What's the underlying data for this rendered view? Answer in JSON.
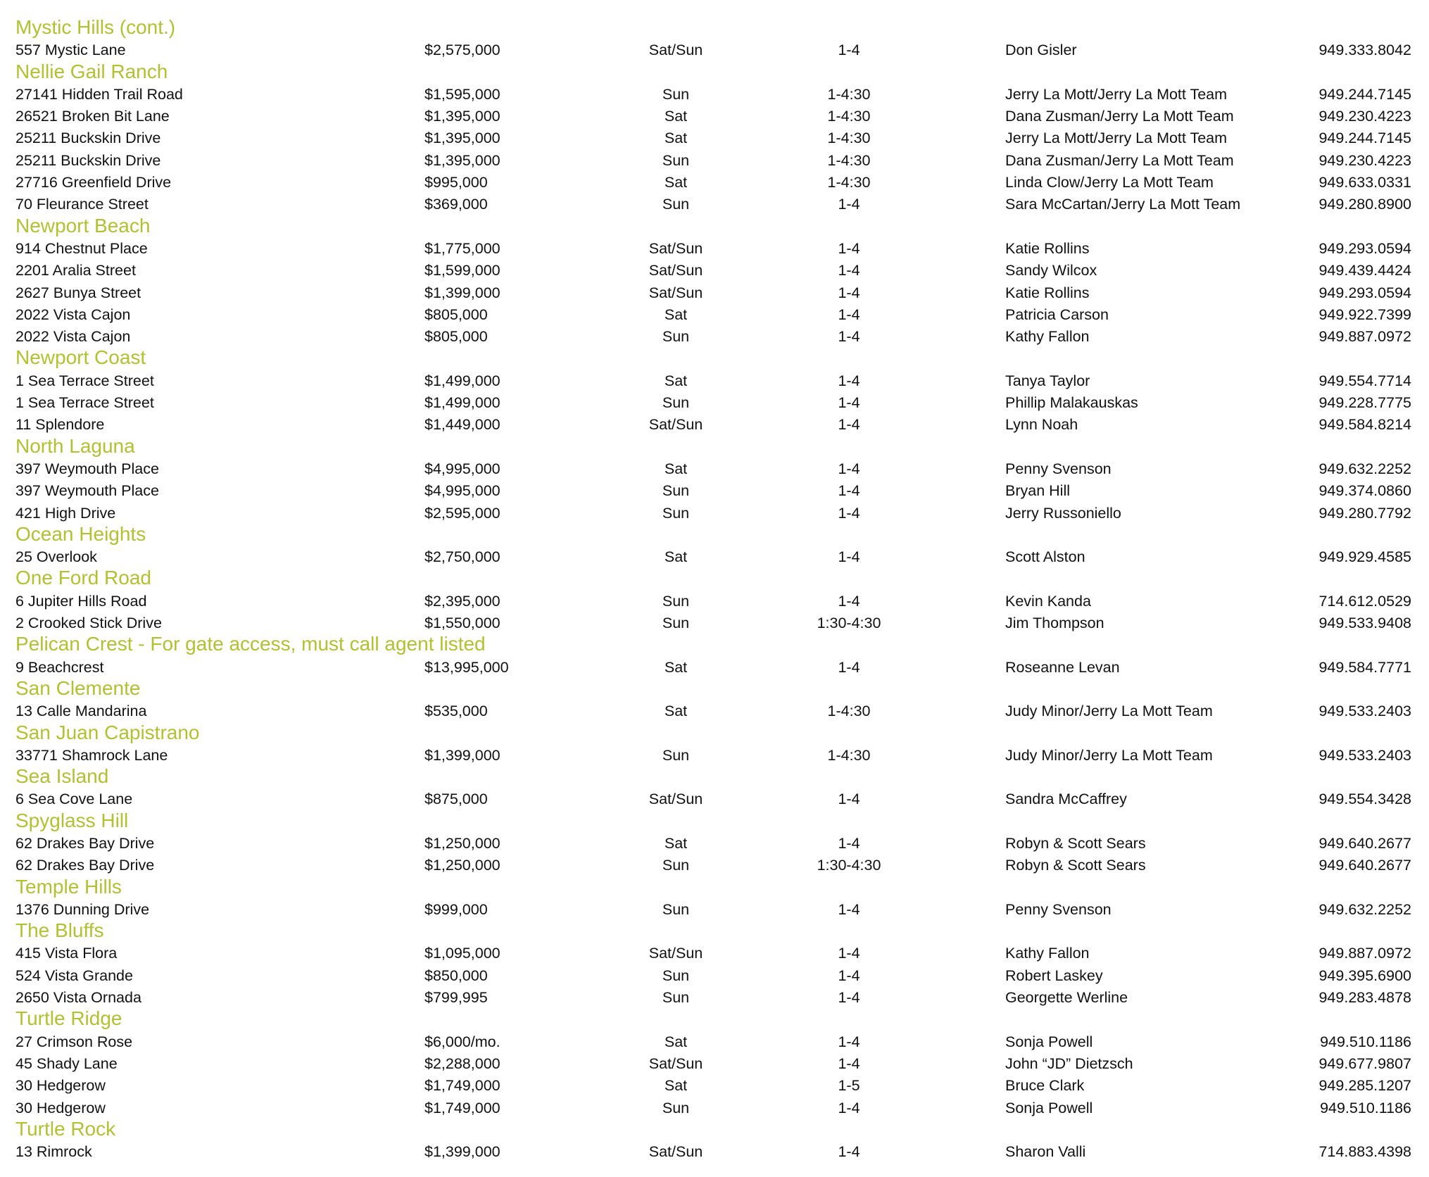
{
  "accent_color": "#b2c12f",
  "sections": [
    {
      "name": "Mystic Hills (cont.)",
      "rows": [
        [
          "557 Mystic Lane",
          "$2,575,000",
          "Sat/Sun",
          "1-4",
          "Don Gisler",
          "949.333.8042"
        ]
      ]
    },
    {
      "name": "Nellie Gail Ranch",
      "rows": [
        [
          "27141 Hidden Trail Road",
          "$1,595,000",
          "Sun",
          "1-4:30",
          "Jerry La Mott/Jerry La Mott Team",
          "949.244.7145"
        ],
        [
          "26521 Broken Bit Lane",
          "$1,395,000",
          "Sat",
          "1-4:30",
          "Dana Zusman/Jerry La Mott Team",
          "949.230.4223"
        ],
        [
          "25211 Buckskin Drive",
          "$1,395,000",
          "Sat",
          "1-4:30",
          "Jerry La Mott/Jerry La Mott Team",
          "949.244.7145"
        ],
        [
          "25211 Buckskin Drive",
          "$1,395,000",
          "Sun",
          "1-4:30",
          "Dana Zusman/Jerry La Mott Team",
          "949.230.4223"
        ],
        [
          "27716 Greenfield Drive",
          "$995,000",
          "Sat",
          "1-4:30",
          "Linda Clow/Jerry La Mott Team",
          "949.633.0331"
        ],
        [
          "70 Fleurance Street",
          "$369,000",
          "Sun",
          "1-4",
          "Sara McCartan/Jerry La Mott Team",
          "949.280.8900"
        ]
      ]
    },
    {
      "name": "Newport Beach",
      "rows": [
        [
          "914 Chestnut Place",
          "$1,775,000",
          "Sat/Sun",
          "1-4",
          "Katie Rollins",
          "949.293.0594"
        ],
        [
          "2201 Aralia Street",
          "$1,599,000",
          "Sat/Sun",
          "1-4",
          "Sandy Wilcox",
          "949.439.4424"
        ],
        [
          "2627 Bunya Street",
          "$1,399,000",
          "Sat/Sun",
          "1-4",
          "Katie Rollins",
          "949.293.0594"
        ],
        [
          "2022 Vista Cajon",
          "$805,000",
          "Sat",
          "1-4",
          "Patricia Carson",
          "949.922.7399"
        ],
        [
          "2022 Vista Cajon",
          "$805,000",
          "Sun",
          "1-4",
          "Kathy Fallon",
          "949.887.0972"
        ]
      ]
    },
    {
      "name": "Newport Coast",
      "rows": [
        [
          "1 Sea Terrace Street",
          "$1,499,000",
          "Sat",
          "1-4",
          "Tanya Taylor",
          "949.554.7714"
        ],
        [
          "1 Sea Terrace Street",
          "$1,499,000",
          "Sun",
          "1-4",
          "Phillip Malakauskas",
          "949.228.7775"
        ],
        [
          "11 Splendore",
          "$1,449,000",
          "Sat/Sun",
          "1-4",
          "Lynn Noah",
          "949.584.8214"
        ]
      ]
    },
    {
      "name": "North Laguna",
      "rows": [
        [
          "397 Weymouth Place",
          "$4,995,000",
          "Sat",
          "1-4",
          "Penny Svenson",
          "949.632.2252"
        ],
        [
          "397 Weymouth Place",
          "$4,995,000",
          "Sun",
          "1-4",
          "Bryan Hill",
          "949.374.0860"
        ],
        [
          "421 High Drive",
          "$2,595,000",
          "Sun",
          "1-4",
          "Jerry Russoniello",
          "949.280.7792"
        ]
      ]
    },
    {
      "name": "Ocean Heights",
      "rows": [
        [
          "25 Overlook",
          "$2,750,000",
          "Sat",
          "1-4",
          "Scott Alston",
          "949.929.4585"
        ]
      ]
    },
    {
      "name": "One Ford Road",
      "rows": [
        [
          "6 Jupiter Hills Road",
          "$2,395,000",
          "Sun",
          "1-4",
          "Kevin Kanda",
          "714.612.0529"
        ],
        [
          "2 Crooked Stick Drive",
          "$1,550,000",
          "Sun",
          "1:30-4:30",
          "Jim Thompson",
          "949.533.9408"
        ]
      ]
    },
    {
      "name": "Pelican Crest - For gate access, must call agent listed",
      "rows": [
        [
          "9 Beachcrest",
          "$13,995,000",
          "Sat",
          "1-4",
          "Roseanne Levan",
          "949.584.7771"
        ]
      ]
    },
    {
      "name": "San Clemente",
      "rows": [
        [
          "13 Calle Mandarina",
          "$535,000",
          "Sat",
          "1-4:30",
          "Judy Minor/Jerry La Mott Team",
          "949.533.2403"
        ]
      ]
    },
    {
      "name": "San Juan Capistrano",
      "rows": [
        [
          "33771 Shamrock Lane",
          "$1,399,000",
          "Sun",
          "1-4:30",
          "Judy Minor/Jerry La Mott Team",
          "949.533.2403"
        ]
      ]
    },
    {
      "name": "Sea Island",
      "rows": [
        [
          "6 Sea Cove Lane",
          "$875,000",
          "Sat/Sun",
          "1-4",
          "Sandra McCaffrey",
          "949.554.3428"
        ]
      ]
    },
    {
      "name": "Spyglass Hill",
      "rows": [
        [
          "62 Drakes Bay Drive",
          "$1,250,000",
          "Sat",
          "1-4",
          "Robyn & Scott Sears",
          "949.640.2677"
        ],
        [
          "62 Drakes Bay Drive",
          "$1,250,000",
          "Sun",
          "1:30-4:30",
          "Robyn & Scott Sears",
          "949.640.2677"
        ]
      ]
    },
    {
      "name": "Temple Hills",
      "rows": [
        [
          "1376 Dunning Drive",
          "$999,000",
          "Sun",
          "1-4",
          "Penny Svenson",
          "949.632.2252"
        ]
      ]
    },
    {
      "name": "The Bluffs",
      "rows": [
        [
          "415 Vista Flora",
          "$1,095,000",
          "Sat/Sun",
          "1-4",
          "Kathy Fallon",
          "949.887.0972"
        ],
        [
          "524 Vista Grande",
          "$850,000",
          "Sun",
          "1-4",
          "Robert Laskey",
          "949.395.6900"
        ],
        [
          "2650 Vista Ornada",
          "$799,995",
          "Sun",
          "1-4",
          "Georgette Werline",
          "949.283.4878"
        ]
      ]
    },
    {
      "name": "Turtle Ridge",
      "rows": [
        [
          "27 Crimson Rose",
          "$6,000/mo.",
          "Sat",
          "1-4",
          "Sonja Powell",
          "949.510.1186"
        ],
        [
          "45 Shady Lane",
          "$2,288,000",
          "Sat/Sun",
          "1-4",
          "John “JD” Dietzsch",
          "949.677.9807"
        ],
        [
          "30 Hedgerow",
          "$1,749,000",
          "Sat",
          "1-5",
          "Bruce Clark",
          "949.285.1207"
        ],
        [
          "30 Hedgerow",
          "$1,749,000",
          "Sun",
          "1-4",
          "Sonja Powell",
          "949.510.1186"
        ]
      ]
    },
    {
      "name": "Turtle Rock",
      "rows": [
        [
          "13 Rimrock",
          "$1,399,000",
          "Sat/Sun",
          "1-4",
          "Sharon Valli",
          "714.883.4398"
        ]
      ]
    }
  ]
}
